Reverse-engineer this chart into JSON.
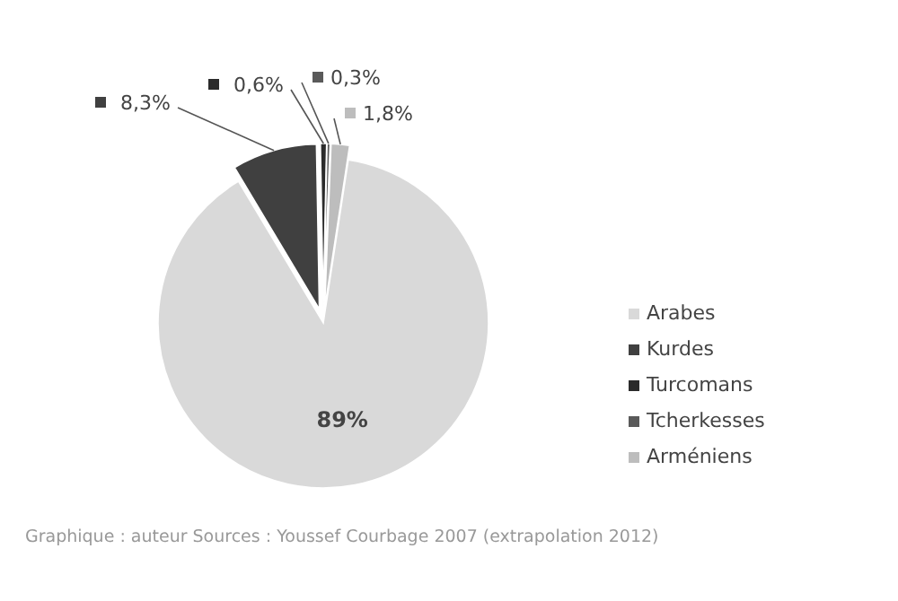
{
  "chart_data": {
    "type": "pie",
    "categories": [
      "Arabes",
      "Kurdes",
      "Turcomans",
      "Tcherkesses",
      "Arméniens"
    ],
    "values": [
      89,
      8.3,
      0.6,
      0.3,
      1.8
    ],
    "value_labels": [
      "89%",
      "8,3%",
      "0,6%",
      "0,3%",
      "1,8%"
    ],
    "colors": [
      "#d9d9d9",
      "#404040",
      "#2b2b2b",
      "#5a5a5a",
      "#bdbdbd"
    ],
    "legend": "right",
    "annotations": [
      "Graphique : auteur Sources : Youssef Courbage 2007 (extrapolation 2012)"
    ]
  }
}
